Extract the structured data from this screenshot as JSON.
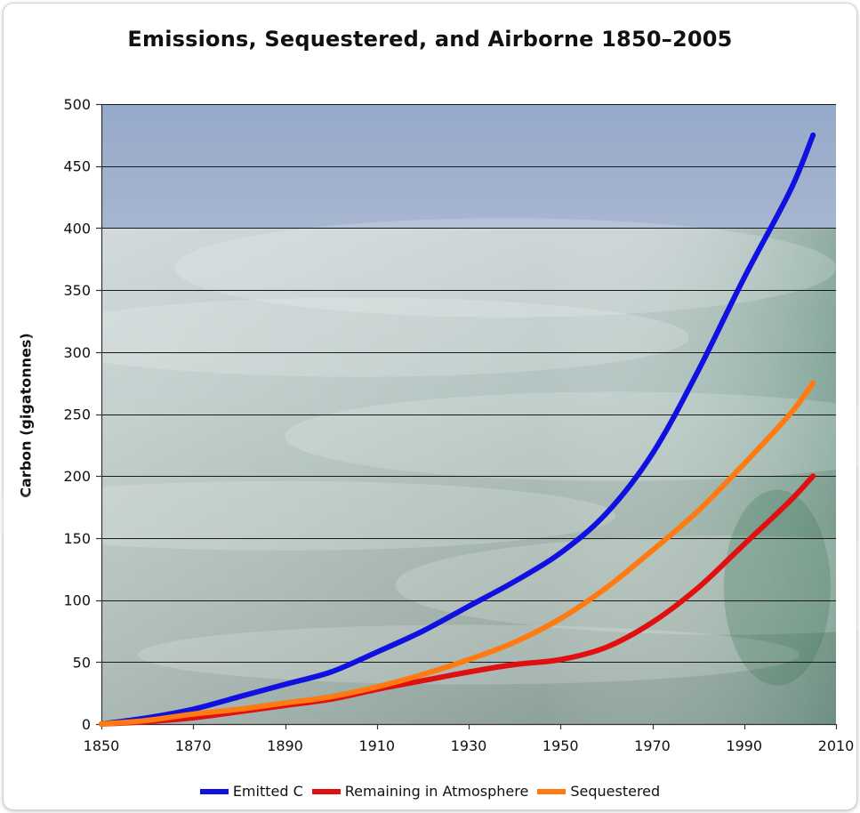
{
  "chart_data": {
    "type": "line",
    "title": "Emissions, Sequestered, and Airborne 1850–2005",
    "xlabel": "",
    "ylabel": "Carbon (gigatonnes)",
    "xlim": [
      1850,
      2010
    ],
    "ylim": [
      0,
      500
    ],
    "x_ticks": [
      "1850",
      "1870",
      "1890",
      "1910",
      "1930",
      "1950",
      "1970",
      "1990",
      "2010"
    ],
    "y_ticks": [
      "0",
      "50",
      "100",
      "150",
      "200",
      "250",
      "300",
      "350",
      "400",
      "450",
      "500"
    ],
    "grid": true,
    "legend_position": "bottom",
    "background": "photo of ocean waves under a blue sky",
    "series": [
      {
        "name": "Emitted C",
        "color": "#1010e0",
        "x": [
          1850,
          1860,
          1870,
          1880,
          1890,
          1900,
          1910,
          1920,
          1930,
          1940,
          1950,
          1960,
          1970,
          1980,
          1990,
          2000,
          2005
        ],
        "values": [
          0,
          5,
          12,
          22,
          32,
          42,
          58,
          75,
          95,
          115,
          138,
          170,
          218,
          285,
          360,
          430,
          475
        ]
      },
      {
        "name": "Remaining in Atmosphere",
        "color": "#e01010",
        "x": [
          1850,
          1860,
          1870,
          1880,
          1890,
          1900,
          1910,
          1920,
          1930,
          1940,
          1950,
          1960,
          1970,
          1980,
          1990,
          2000,
          2005
        ],
        "values": [
          0,
          2,
          5,
          10,
          15,
          20,
          28,
          35,
          42,
          48,
          52,
          62,
          82,
          110,
          145,
          180,
          200
        ]
      },
      {
        "name": "Sequestered",
        "color": "#ff7a10",
        "x": [
          1850,
          1860,
          1870,
          1880,
          1890,
          1900,
          1910,
          1920,
          1930,
          1940,
          1950,
          1960,
          1970,
          1980,
          1990,
          2000,
          2005
        ],
        "values": [
          0,
          3,
          8,
          12,
          17,
          22,
          30,
          40,
          52,
          66,
          85,
          110,
          140,
          172,
          210,
          250,
          275
        ]
      }
    ]
  }
}
